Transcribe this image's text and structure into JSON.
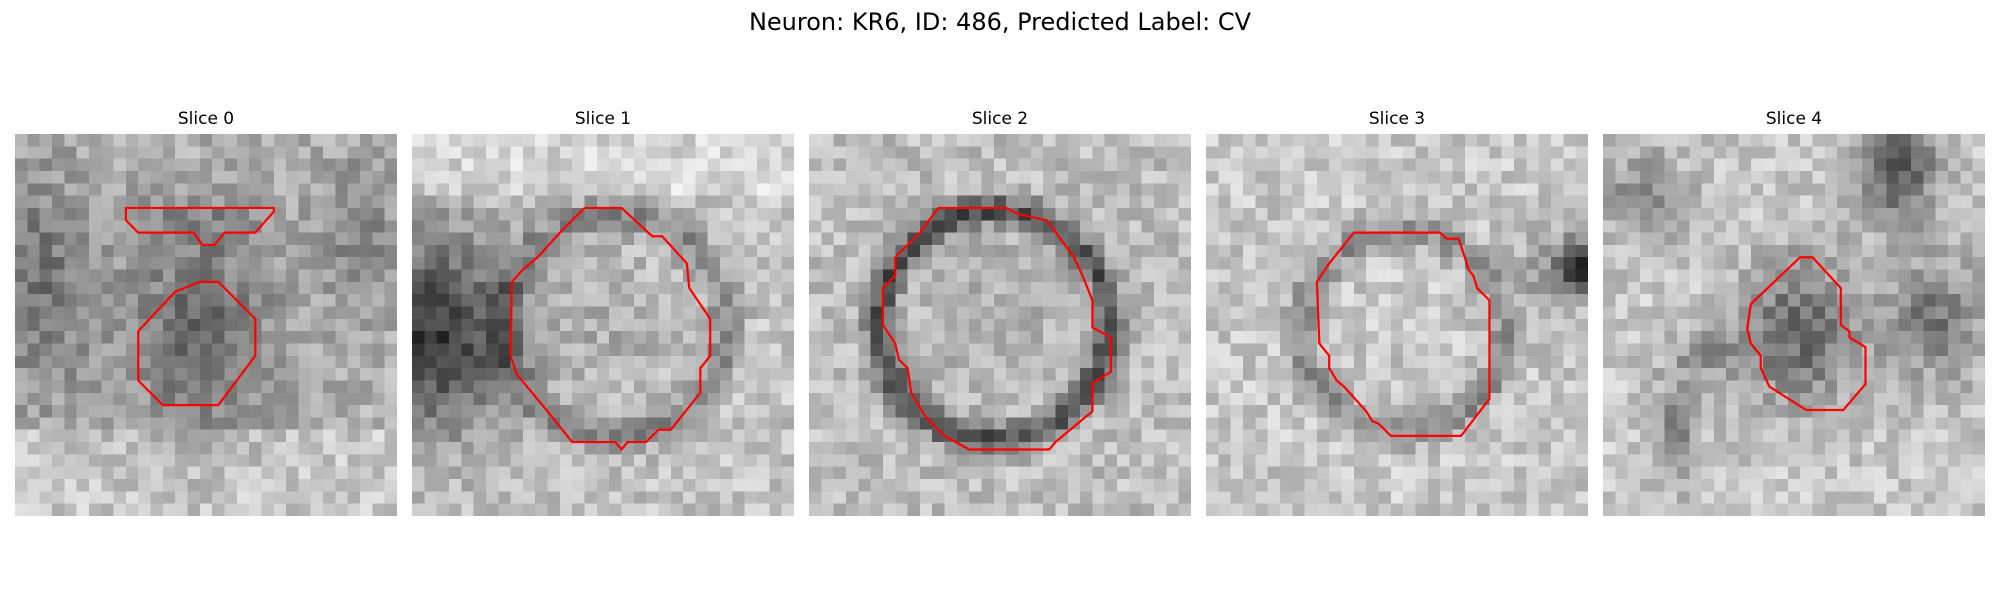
{
  "figure": {
    "title": "Neuron: KR6, ID: 486, Predicted Label: CV"
  },
  "colors": {
    "contour": "#ff0000",
    "colormap": "gray"
  },
  "panels": [
    {
      "title": "Slice 0",
      "icon": "grayscale-micrograph-slice-0"
    },
    {
      "title": "Slice 1",
      "icon": "grayscale-micrograph-slice-1"
    },
    {
      "title": "Slice 2",
      "icon": "grayscale-micrograph-slice-2"
    },
    {
      "title": "Slice 3",
      "icon": "grayscale-micrograph-slice-3"
    },
    {
      "title": "Slice 4",
      "icon": "grayscale-micrograph-slice-4"
    }
  ]
}
